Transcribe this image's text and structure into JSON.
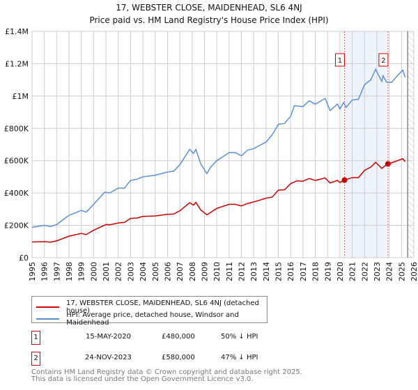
{
  "chart_data": {
    "type": "line",
    "title": "17, WEBSTER CLOSE, MAIDENHEAD, SL6 4NJ",
    "subtitle": "Price paid vs. HM Land Registry's House Price Index (HPI)",
    "xlim": [
      1995,
      2026
    ],
    "ylim": [
      0,
      1400000
    ],
    "yticks": [
      0,
      200000,
      400000,
      600000,
      800000,
      1000000,
      1200000,
      1400000
    ],
    "ytick_labels": [
      "£0",
      "£200K",
      "£400K",
      "£600K",
      "£800K",
      "£1M",
      "£1.2M",
      "£1.4M"
    ],
    "xticks": [
      "1995",
      "1996",
      "1997",
      "1998",
      "1999",
      "2000",
      "2001",
      "2002",
      "2003",
      "2004",
      "2005",
      "2006",
      "2007",
      "2008",
      "2009",
      "2010",
      "2011",
      "2012",
      "2013",
      "2014",
      "2015",
      "2016",
      "2017",
      "2018",
      "2019",
      "2020",
      "2021",
      "2022",
      "2023",
      "2024",
      "2025",
      "2026"
    ],
    "grid": true,
    "shaded_range": [
      2020.37,
      2023.9
    ],
    "hatched_from": 2025.5,
    "series": [
      {
        "name": "17, WEBSTER CLOSE, MAIDENHEAD, SL6 4NJ (detached house)",
        "color": "#cc0000",
        "x": [
          1995,
          1996,
          1996.5,
          1997,
          1998,
          1999,
          1999.4,
          2000,
          2001,
          2001.3,
          2002,
          2002.5,
          2003,
          2003.5,
          2004,
          2005,
          2006,
          2006.5,
          2007,
          2007.8,
          2008.1,
          2008.3,
          2008.7,
          2009.2,
          2010,
          2011,
          2011.5,
          2012,
          2012.5,
          2013,
          2014,
          2014.5,
          2015,
          2015.5,
          2016,
          2016.5,
          2017,
          2017.5,
          2018,
          2018.8,
          2019.2,
          2019.8,
          2020,
          2020.37,
          2021,
          2021.5,
          2022,
          2022.5,
          2022.9,
          2023.4,
          2023.6,
          2023.9,
          2024.5,
          2025.1,
          2025.3
        ],
        "y": [
          97000,
          99000,
          96000,
          104000,
          133000,
          150000,
          143000,
          170000,
          205000,
          203000,
          215000,
          218000,
          243000,
          245000,
          255000,
          258000,
          268000,
          270000,
          290000,
          340000,
          325000,
          342000,
          295000,
          265000,
          305000,
          330000,
          330000,
          320000,
          335000,
          345000,
          368000,
          375000,
          418000,
          420000,
          458000,
          475000,
          473000,
          490000,
          478000,
          493000,
          462000,
          478000,
          465000,
          480000,
          495000,
          495000,
          540000,
          560000,
          590000,
          552000,
          565000,
          580000,
          595000,
          612000,
          593000
        ]
      },
      {
        "name": "HPI: Average price, detached house, Windsor and Maidenhead",
        "color": "#5b8fd4",
        "x": [
          1995,
          1996,
          1996.5,
          1997,
          1998,
          1999,
          1999.4,
          2000,
          2000.9,
          2001.3,
          2002,
          2002.5,
          2003,
          2003.5,
          2004,
          2004.5,
          2005,
          2006,
          2006.5,
          2007,
          2007.8,
          2008.1,
          2008.3,
          2008.7,
          2009.2,
          2009.5,
          2010,
          2011,
          2011.5,
          2012,
          2012.5,
          2013,
          2014,
          2014.5,
          2015,
          2015.5,
          2016,
          2016.3,
          2017,
          2017.5,
          2018,
          2018.8,
          2019.2,
          2019.8,
          2020,
          2020.3,
          2020.5,
          2021,
          2021.5,
          2022,
          2022.5,
          2022.9,
          2023.4,
          2023.5,
          2023.8,
          2024.2,
          2024.6,
          2025.1,
          2025.3
        ],
        "y": [
          188000,
          200000,
          193000,
          205000,
          262000,
          292000,
          282000,
          330000,
          405000,
          400000,
          430000,
          430000,
          478000,
          485000,
          500000,
          505000,
          510000,
          530000,
          535000,
          575000,
          670000,
          645000,
          670000,
          580000,
          520000,
          560000,
          600000,
          650000,
          650000,
          630000,
          665000,
          675000,
          715000,
          760000,
          825000,
          830000,
          875000,
          940000,
          935000,
          970000,
          950000,
          985000,
          910000,
          950000,
          920000,
          960000,
          930000,
          975000,
          980000,
          1070000,
          1100000,
          1165000,
          1090000,
          1125000,
          1085000,
          1085000,
          1120000,
          1160000,
          1115000
        ]
      }
    ],
    "sales": [
      {
        "label": "1",
        "x": 2020.37,
        "y": 480000,
        "date": "15-MAY-2020",
        "price": "£480,000",
        "hpi": "50% ↓ HPI"
      },
      {
        "label": "2",
        "x": 2023.9,
        "y": 580000,
        "date": "24-NOV-2023",
        "price": "£580,000",
        "hpi": "47% ↓ HPI"
      }
    ]
  },
  "footer": {
    "line1": "Contains HM Land Registry data © Crown copyright and database right 2025.",
    "line2": "This data is licensed under the Open Government Licence v3.0."
  }
}
